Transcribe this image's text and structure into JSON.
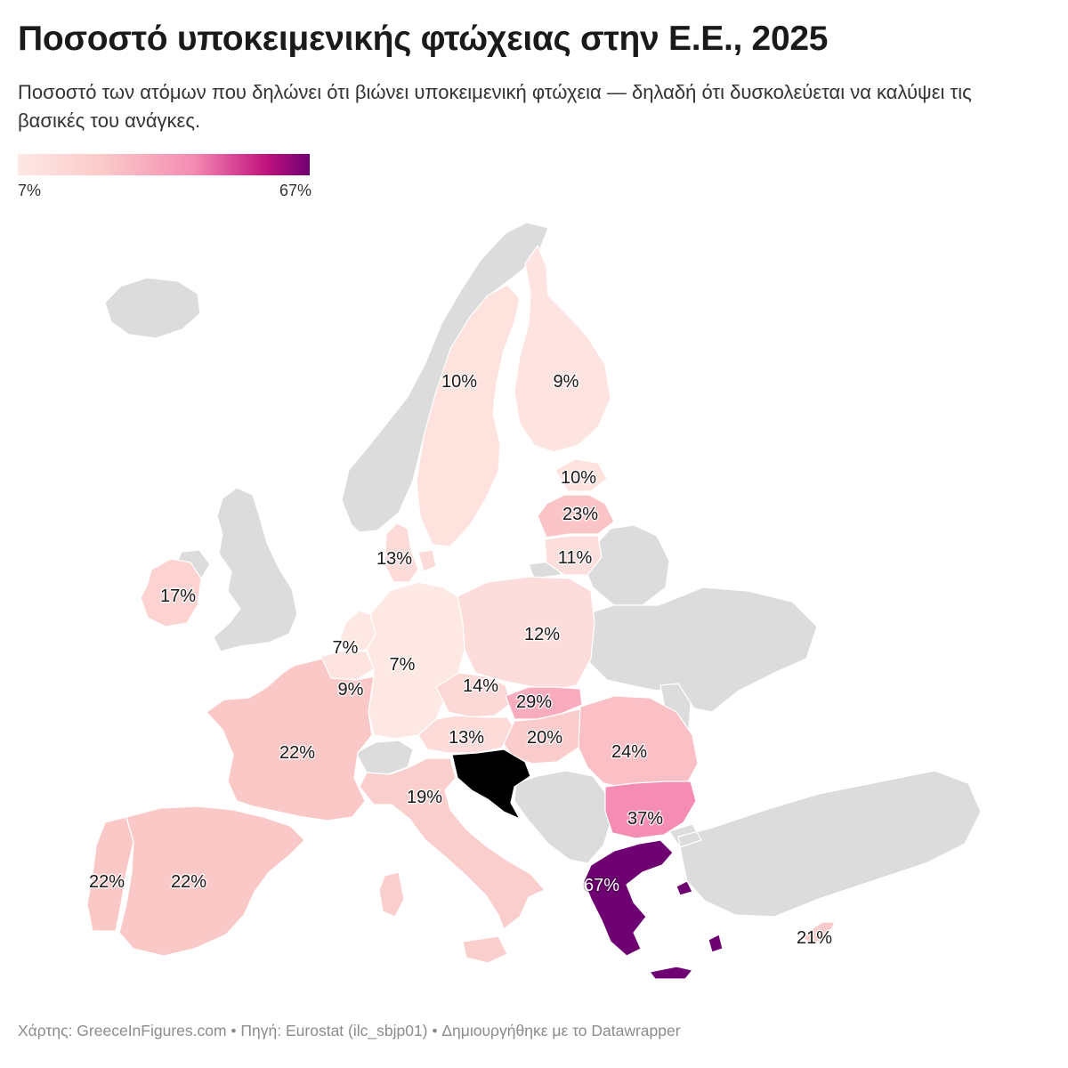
{
  "title": "Ποσοστό υποκειμενικής φτώχειας στην Ε.Ε., 2025",
  "subtitle": "Ποσοστό των ατόμων που δηλώνει ότι βιώνει υποκειμενική φτώχεια — δηλαδή ότι δυσκολεύεται να καλύψει τις βασικές του ανάγκες.",
  "legend": {
    "min_label": "7%",
    "max_label": "67%",
    "min_value": 7,
    "max_value": 67
  },
  "colors": {
    "no_data": "#dcdcdc",
    "scale": [
      "#fde8e4",
      "#fbc8c8",
      "#f58cb3",
      "#c2127e",
      "#6e0072"
    ]
  },
  "countries": [
    {
      "id": "sweden",
      "value": 10,
      "label": "10%"
    },
    {
      "id": "finland",
      "value": 9,
      "label": "9%"
    },
    {
      "id": "estonia",
      "value": 10,
      "label": "10%"
    },
    {
      "id": "latvia",
      "value": 23,
      "label": "23%"
    },
    {
      "id": "lithuania",
      "value": 11,
      "label": "11%"
    },
    {
      "id": "denmark",
      "value": 13,
      "label": "13%"
    },
    {
      "id": "ireland",
      "value": 17,
      "label": "17%"
    },
    {
      "id": "netherlands",
      "value": 7,
      "label": "7%"
    },
    {
      "id": "germany",
      "value": 7,
      "label": "7%"
    },
    {
      "id": "poland",
      "value": 12,
      "label": "12%"
    },
    {
      "id": "belgium",
      "value": 9,
      "label": "9%"
    },
    {
      "id": "czechia",
      "value": 14,
      "label": "14%"
    },
    {
      "id": "slovakia",
      "value": 29,
      "label": "29%"
    },
    {
      "id": "austria",
      "value": 13,
      "label": "13%"
    },
    {
      "id": "hungary",
      "value": 20,
      "label": "20%"
    },
    {
      "id": "romania",
      "value": 24,
      "label": "24%"
    },
    {
      "id": "france",
      "value": 22,
      "label": "22%"
    },
    {
      "id": "italy",
      "value": 19,
      "label": "19%"
    },
    {
      "id": "bulgaria",
      "value": 37,
      "label": "37%"
    },
    {
      "id": "portugal",
      "value": 22,
      "label": "22%"
    },
    {
      "id": "spain",
      "value": 22,
      "label": "22%"
    },
    {
      "id": "greece",
      "value": 67,
      "label": "67%"
    },
    {
      "id": "cyprus",
      "value": 21,
      "label": "21%"
    }
  ],
  "footer": "Χάρτης: GreeceInFigures.com • Πηγή: Eurostat (ilc_sbjp01)  • Δημιουργήθηκε με το Datawrapper"
}
